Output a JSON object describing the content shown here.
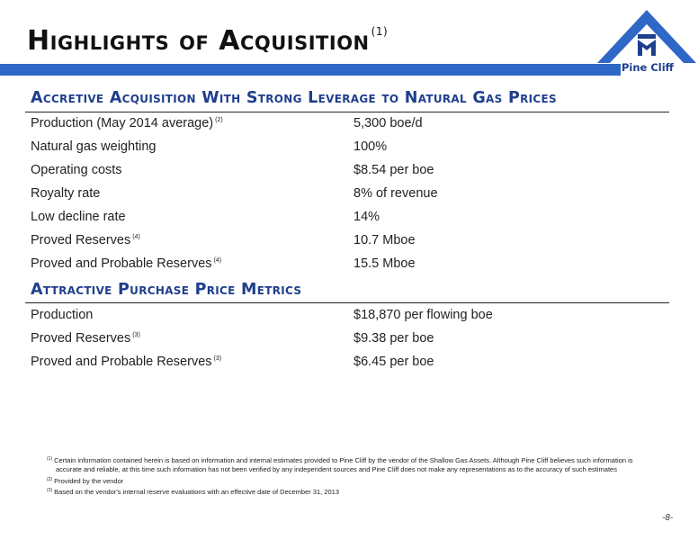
{
  "header": {
    "title": "Highlights of Acquisition",
    "title_note": "(1)"
  },
  "logo": {
    "text": "Pine Cliff",
    "icon": "pine-cliff-house-logo",
    "color": "#2f67c6"
  },
  "accent_color": "#2f67c6",
  "section_color": "#1f3f8c",
  "sections": [
    {
      "heading": "Accretive Acquisition With Strong Leverage to Natural Gas Prices",
      "rows": [
        {
          "label": "Production (May 2014 average)",
          "note": "(2)",
          "value": "5,300 boe/d"
        },
        {
          "label": "Natural gas weighting",
          "note": "",
          "value": "100%"
        },
        {
          "label": "Operating costs",
          "note": "",
          "value": "$8.54 per boe"
        },
        {
          "label": "Royalty rate",
          "note": "",
          "value": "8% of revenue"
        },
        {
          "label": "Low decline rate",
          "note": "",
          "value": "14%"
        },
        {
          "label": "Proved Reserves",
          "note": "(4)",
          "value": "10.7 Mboe"
        },
        {
          "label": "Proved and Probable Reserves",
          "note": "(4)",
          "value": "15.5 Mboe"
        }
      ]
    },
    {
      "heading": "Attractive Purchase Price Metrics",
      "rows": [
        {
          "label": "Production",
          "note": "",
          "value": "$18,870 per flowing boe"
        },
        {
          "label": "Proved Reserves",
          "note": "(3)",
          "value": "$9.38 per boe"
        },
        {
          "label": "Proved and Probable Reserves",
          "note": "(3)",
          "value": "$6.45 per boe"
        }
      ]
    }
  ],
  "footnotes": [
    {
      "mark": "(1)",
      "text": "Certain information contained herein is based on information and internal estimates provided to Pine Cliff by the vendor of the Shallow Gas Assets.  Although Pine Cliff believes such information is accurate and reliable, at this time such information has not been verified by any independent sources and Pine Cliff does not make any representations as to the accuracy of such estimates"
    },
    {
      "mark": "(2)",
      "text": "Provided by the vendor"
    },
    {
      "mark": "(3)",
      "text": "Based on the vendor's internal reserve evaluations with an effective date of December 31, 2013"
    }
  ],
  "page_number": "-8-"
}
